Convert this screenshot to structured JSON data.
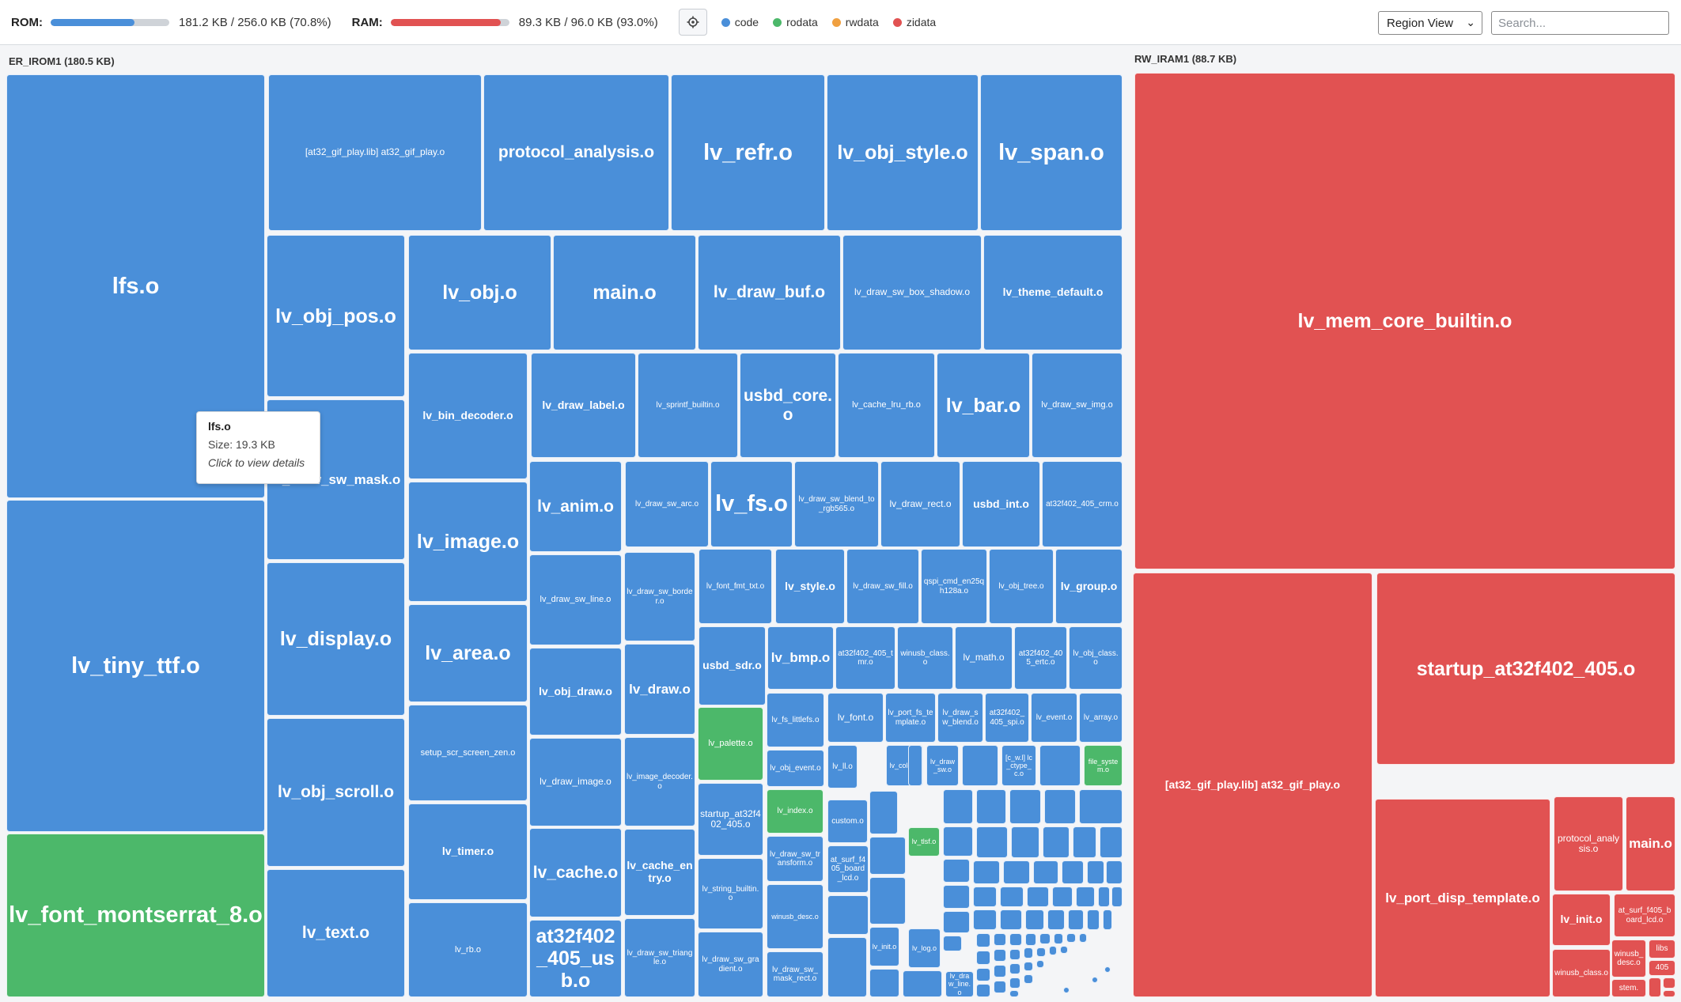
{
  "topbar": {
    "rom": {
      "label": "ROM:",
      "text": "181.2 KB / 256.0 KB (70.8%)",
      "fill_pct": 70.8,
      "color": "#4a8fd9"
    },
    "ram": {
      "label": "RAM:",
      "text": "89.3 KB / 96.0 KB (93.0%)",
      "fill_pct": 93.0,
      "color": "#e15252"
    },
    "settings_icon": "gear-icon",
    "legend": [
      {
        "label": "code",
        "color": "#4a8fd9"
      },
      {
        "label": "rodata",
        "color": "#4cb86a"
      },
      {
        "label": "rwdata",
        "color": "#f0a040"
      },
      {
        "label": "zidata",
        "color": "#e15252"
      }
    ],
    "view_select": "Region View",
    "search_placeholder": "Search..."
  },
  "regions": {
    "irom": "ER_IROM1 (180.5 KB)",
    "iram": "RW_IRAM1 (88.7 KB)"
  },
  "tooltip": {
    "name": "lfs.o",
    "size": "Size: 19.3 KB",
    "hint": "Click to view details"
  },
  "modules": [
    "lfs.o",
    "lv_tiny_ttf.o",
    "lv_font_montserrat_8.o",
    "[at32_gif_play.lib] at32_gif_play.o",
    "protocol_analysis.o",
    "lv_refr.o",
    "lv_obj_style.o",
    "lv_span.o",
    "lv_obj_pos.o",
    "lv_obj.o",
    "main.o",
    "lv_draw_buf.o",
    "lv_draw_sw_box_shadow.o",
    "lv_theme_default.o",
    "lv_draw_sw_mask.o",
    "lv_bin_decoder.o",
    "lv_draw_label.o",
    "lv_sprintf_builtin.o",
    "usbd_core.o",
    "lv_cache_lru_rb.o",
    "lv_bar.o",
    "lv_draw_sw_img.o",
    "lv_image.o",
    "lv_anim.o",
    "lv_draw_sw_arc.o",
    "lv_fs.o",
    "lv_draw_sw_blend_to_rgb565.o",
    "lv_draw_rect.o",
    "usbd_int.o",
    "at32f402_405_crm.o",
    "lv_display.o",
    "lv_area.o",
    "lv_draw_sw_line.o",
    "lv_draw_sw_border.o",
    "lv_font_fmt_txt.o",
    "lv_style.o",
    "lv_draw_sw_fill.o",
    "qspi_cmd_en25qh128a.o",
    "lv_obj_tree.o",
    "lv_group.o",
    "lv_obj_draw.o",
    "lv_draw.o",
    "usbd_sdr.o",
    "lv_bmp.o",
    "at32f402_405_tmr.o",
    "winusb_class.o",
    "lv_math.o",
    "at32f402_405_ertc.o",
    "lv_obj_class.o",
    "lv_obj_scroll.o",
    "setup_scr_screen_zen.o",
    "lv_palette.o",
    "lv_fs_littlefs.o",
    "lv_font.o",
    "lv_port_fs_template.o",
    "lv_draw_sw_blend.o",
    "at32f402_405_spi.o",
    "lv_event.o",
    "lv_array.o",
    "lv_draw_image.o",
    "lv_image_decoder.o",
    "lv_obj_event.o",
    "lv_ll.o",
    "lv_color.o",
    "lv_draw_sw.o",
    "[c_w.l] lc_ctype_c.o",
    "file_system.o",
    "lv_timer.o",
    "startup_at32f402_405.o",
    "lv_index.o",
    "custom.o",
    "lv_tlsf.o",
    "lv_text.o",
    "lv_cache.o",
    "lv_cache_entry.o",
    "lv_string_builtin.o",
    "lv_draw_sw_transform.o",
    "winusb_desc.o",
    "at_surf_f405_board_lcd.o",
    "lv_rb.o",
    "at32f402_405_usb.o",
    "lv_draw_sw_triangle.o",
    "lv_draw_sw_gradient.o",
    "lv_draw_sw_mask_rect.o",
    "lv_init.o",
    "lv_log.o",
    "lv_draw_line.o",
    "lv_mem_core_builtin.o",
    "startup_at32f402_405.o",
    "[at32_gif_play.lib] at32_gif_play.o",
    "lv_port_disp_template.o",
    "protocol_analysis.o",
    "main.o",
    "lv_init.o",
    "at_surf_f405_board_lcd.o",
    "winusb_class.o",
    "winusb_desc.o",
    "libs",
    "405",
    "stem."
  ]
}
